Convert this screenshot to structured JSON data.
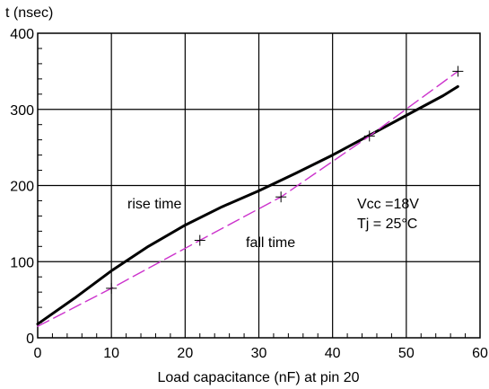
{
  "chart_data": {
    "type": "line",
    "ylabel": "t (nsec)",
    "xlabel": "Load capacitance (nF) at pin 20",
    "xlim": [
      0,
      60
    ],
    "ylim": [
      0,
      400
    ],
    "x_ticks": [
      "0",
      "10",
      "20",
      "30",
      "40",
      "50",
      "60"
    ],
    "y_ticks": [
      "0",
      "100",
      "200",
      "300",
      "400"
    ],
    "grid": true,
    "series": [
      {
        "name": "rise time",
        "style": "solid",
        "color": "#000000",
        "x": [
          0,
          5,
          10,
          15,
          20,
          25,
          30,
          35,
          40,
          45,
          50,
          55,
          57
        ],
        "y": [
          18,
          52,
          88,
          120,
          148,
          172,
          193,
          216,
          240,
          266,
          292,
          318,
          330
        ]
      },
      {
        "name": "fall time",
        "style": "dashed",
        "color": "#cc33cc",
        "x": [
          0,
          10,
          22,
          33,
          45,
          57
        ],
        "y": [
          15,
          65,
          128,
          185,
          265,
          350
        ]
      }
    ],
    "annotations": {
      "vcc": "Vcc =18V",
      "tj": "Tj = 25°C"
    }
  }
}
